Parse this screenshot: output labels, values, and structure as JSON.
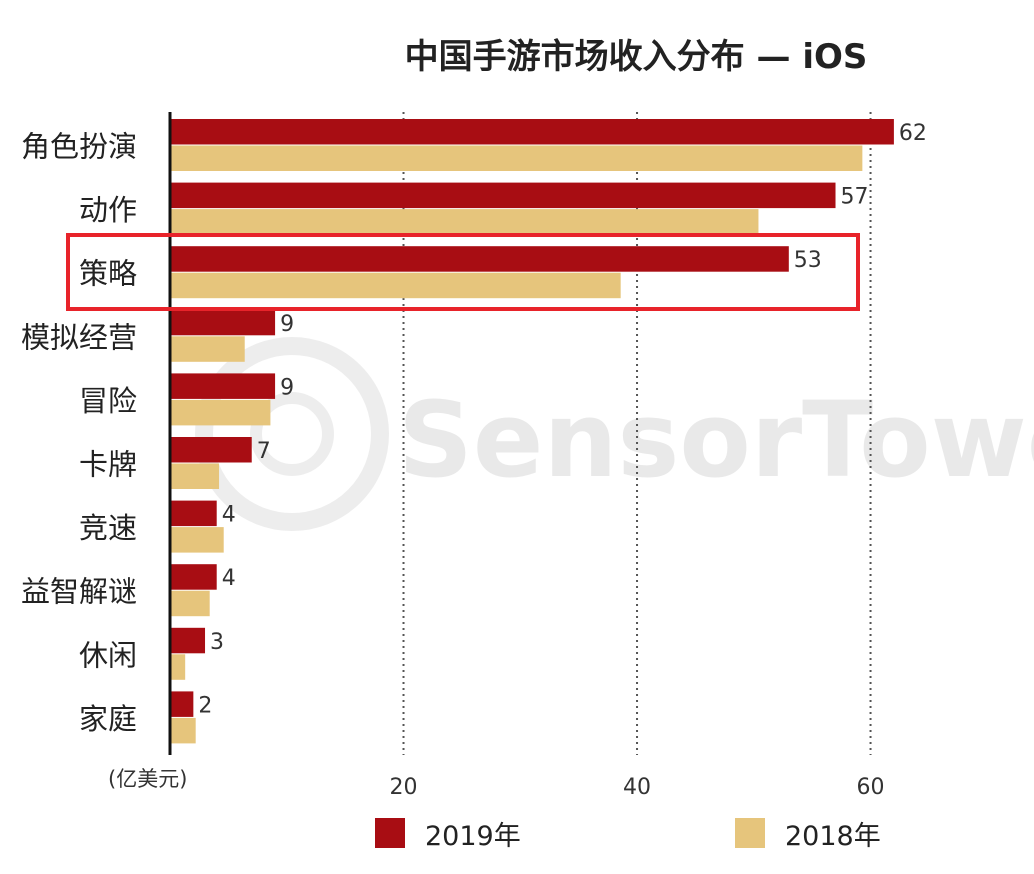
{
  "chart_data": {
    "type": "bar",
    "orientation": "horizontal",
    "title": "中国手游市场收入分布 — iOS",
    "unit_label": "(亿美元)",
    "categories": [
      "角色扮演",
      "动作",
      "策略",
      "模拟经营",
      "冒险",
      "卡牌",
      "竞速",
      "益智解谜",
      "休闲",
      "家庭"
    ],
    "series": [
      {
        "name": "2019年",
        "color": "#a80d13",
        "values": [
          62,
          57,
          53,
          9,
          9,
          7,
          4,
          4,
          3,
          2
        ]
      },
      {
        "name": "2018年",
        "color": "#e6c57c",
        "values": [
          59.3,
          50.4,
          38.6,
          6.4,
          8.6,
          4.2,
          4.6,
          3.4,
          1.3,
          2.2
        ]
      }
    ],
    "data_labels": [
      "62",
      "57",
      "53",
      "9",
      "9",
      "7",
      "4",
      "4",
      "3",
      "2"
    ],
    "x_ticks": [
      20,
      40,
      60
    ],
    "xlim": [
      0,
      74
    ],
    "grid": "vertical-dotted",
    "highlight_category": "策略",
    "highlight_color": "#e8232a",
    "legend_position": "bottom"
  },
  "watermark": "SensorTower"
}
